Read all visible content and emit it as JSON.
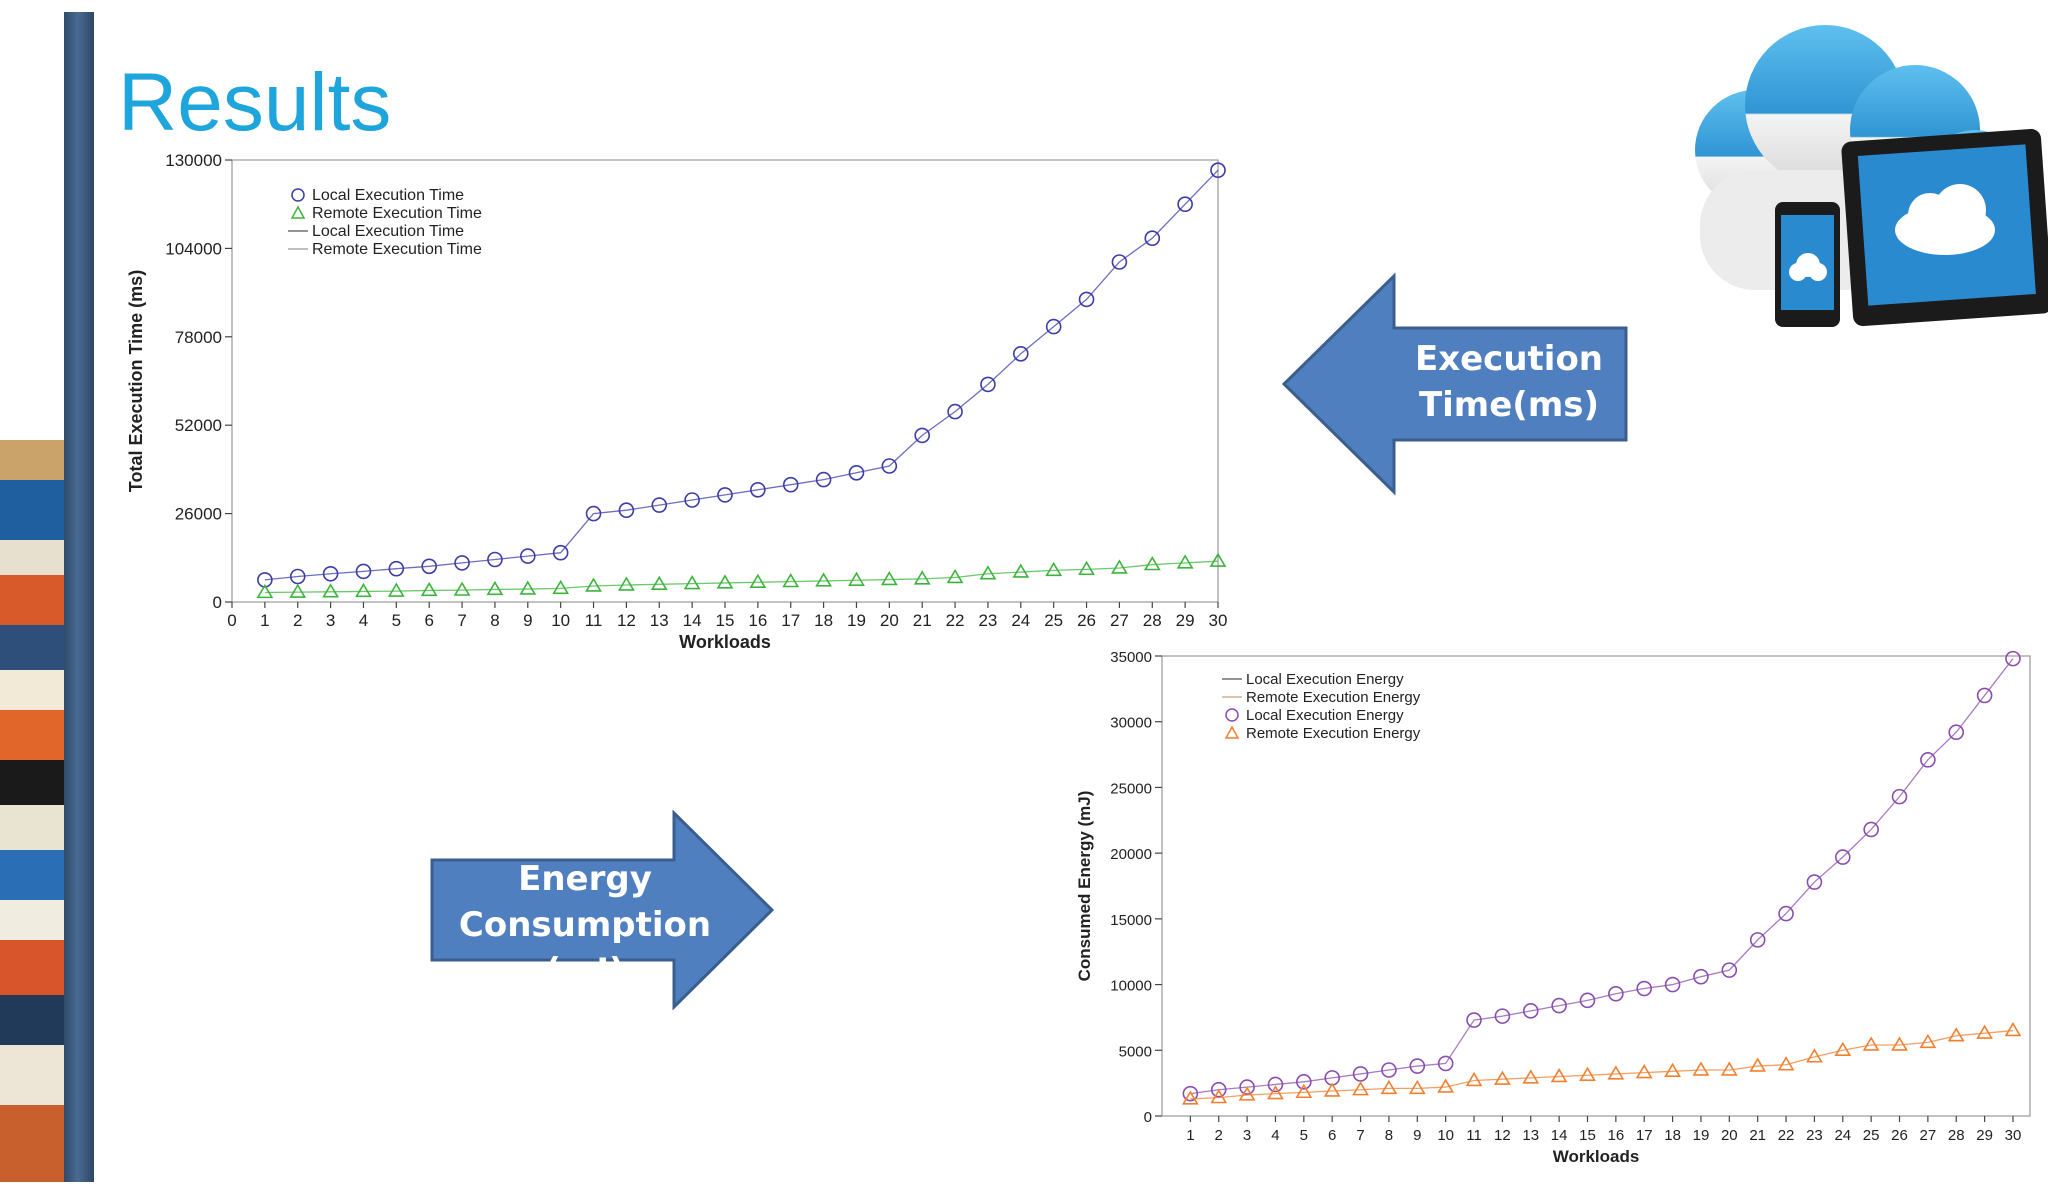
{
  "slide": {
    "title": "Results"
  },
  "arrows": {
    "execution_label_line1": "Execution",
    "execution_label_line2": "Time(ms)",
    "energy_label_line1": "Energy",
    "energy_label_line2": "Consumption (mJ)"
  },
  "colors": {
    "title": "#1ea5dc",
    "arrow_fill": "#4f7fbf",
    "arrow_stroke": "#3a5f8f",
    "local_time": "#3c3ca8",
    "remote_time": "#3cb43c",
    "local_energy": "#8a4db0",
    "remote_energy": "#f08030"
  },
  "chart_data": [
    {
      "type": "line",
      "xlabel": "Workloads",
      "ylabel": "Total Execution Time (ms)",
      "x": [
        1,
        2,
        3,
        4,
        5,
        6,
        7,
        8,
        9,
        10,
        11,
        12,
        13,
        14,
        15,
        16,
        17,
        18,
        19,
        20,
        21,
        22,
        23,
        24,
        25,
        26,
        27,
        28,
        29,
        30
      ],
      "x_ticks": [
        "0",
        "1",
        "2",
        "3",
        "4",
        "5",
        "6",
        "7",
        "8",
        "9",
        "10",
        "11",
        "12",
        "13",
        "14",
        "15",
        "16",
        "17",
        "18",
        "19",
        "20",
        "21",
        "22",
        "23",
        "24",
        "25",
        "26",
        "27",
        "28",
        "29",
        "30"
      ],
      "ylim": [
        0,
        130000
      ],
      "y_ticks": [
        "0",
        "26000",
        "52000",
        "78000",
        "104000",
        "130000"
      ],
      "grid": false,
      "legend_position": "top-left",
      "legend": [
        "Local Execution Time",
        "Remote Execution Time",
        "Local Execution Time",
        "Remote Execution Time"
      ],
      "series": [
        {
          "name": "Local Execution Time",
          "marker": "circle",
          "values": [
            6500,
            7500,
            8300,
            9000,
            9800,
            10500,
            11500,
            12500,
            13500,
            14500,
            26000,
            27000,
            28500,
            30000,
            31500,
            33000,
            34500,
            36000,
            38000,
            40000,
            49000,
            56000,
            64000,
            73000,
            81000,
            89000,
            100000,
            107000,
            117000,
            127000
          ]
        },
        {
          "name": "Remote Execution Time",
          "marker": "triangle",
          "values": [
            2800,
            2900,
            3000,
            3100,
            3200,
            3400,
            3500,
            3700,
            3800,
            4000,
            4700,
            5000,
            5200,
            5400,
            5600,
            5800,
            6000,
            6200,
            6400,
            6600,
            6800,
            7200,
            8300,
            8800,
            9300,
            9600,
            10000,
            11000,
            11500,
            12000
          ]
        }
      ]
    },
    {
      "type": "line",
      "xlabel": "Workloads",
      "ylabel": "Consumed Energy (mJ)",
      "x": [
        1,
        2,
        3,
        4,
        5,
        6,
        7,
        8,
        9,
        10,
        11,
        12,
        13,
        14,
        15,
        16,
        17,
        18,
        19,
        20,
        21,
        22,
        23,
        24,
        25,
        26,
        27,
        28,
        29,
        30
      ],
      "x_ticks": [
        "1",
        "2",
        "3",
        "4",
        "5",
        "6",
        "7",
        "8",
        "9",
        "10",
        "11",
        "12",
        "13",
        "14",
        "15",
        "16",
        "17",
        "18",
        "19",
        "20",
        "21",
        "22",
        "23",
        "24",
        "25",
        "26",
        "27",
        "28",
        "29",
        "30"
      ],
      "ylim": [
        0,
        35000
      ],
      "y_ticks": [
        "0",
        "5000",
        "10000",
        "15000",
        "20000",
        "25000",
        "30000",
        "35000"
      ],
      "grid": false,
      "legend_position": "top-left",
      "legend": [
        "Local Execution Energy",
        "Remote Execution Energy",
        "Local Execution Energy",
        "Remote Execution Energy"
      ],
      "series": [
        {
          "name": "Local Execution Energy",
          "marker": "circle",
          "values": [
            1700,
            2000,
            2200,
            2400,
            2600,
            2900,
            3200,
            3500,
            3800,
            4000,
            7300,
            7600,
            8000,
            8400,
            8800,
            9300,
            9700,
            10000,
            10600,
            11100,
            13400,
            15400,
            17800,
            19700,
            21800,
            24300,
            27100,
            29200,
            32000,
            34800
          ]
        },
        {
          "name": "Remote Execution Energy",
          "marker": "triangle",
          "values": [
            1300,
            1400,
            1600,
            1700,
            1800,
            1900,
            2000,
            2100,
            2100,
            2200,
            2700,
            2800,
            2900,
            3000,
            3100,
            3200,
            3300,
            3400,
            3500,
            3500,
            3800,
            3900,
            4500,
            5000,
            5400,
            5400,
            5600,
            6100,
            6300,
            6500
          ]
        }
      ]
    }
  ]
}
